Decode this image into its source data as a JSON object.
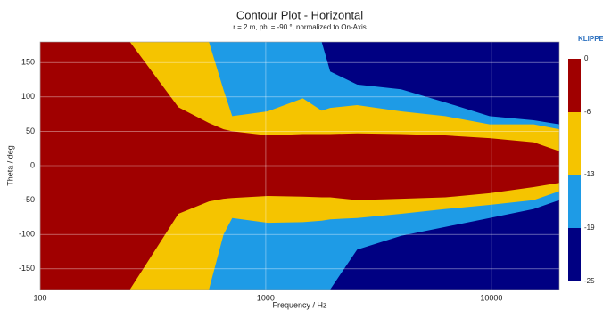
{
  "chart_data": {
    "type": "contour",
    "title": "Contour Plot - Horizontal",
    "subtitle": "r = 2 m, phi = -90 °, normalized to On-Axis",
    "brand": "KLIPPE",
    "x_label": "Frequency / Hz",
    "y_label": "Theta / deg",
    "x_log": true,
    "xlim": [
      100,
      20000
    ],
    "xticks": [
      100,
      1000,
      10000
    ],
    "ylim": [
      -180,
      180
    ],
    "yticks": [
      -150,
      -100,
      -50,
      0,
      50,
      100,
      150
    ],
    "grid": true,
    "x": [
      100,
      250,
      410,
      560,
      650,
      710,
      1020,
      1460,
      1770,
      1930,
      2540,
      3980,
      6250,
      9820,
      15400,
      20000
    ],
    "contours": [
      {
        "upper": [
          180,
          180,
          180,
          180,
          180,
          180,
          180,
          180,
          180,
          137,
          118,
          111,
          92,
          72,
          66,
          60
        ],
        "lower": [
          -180,
          -180,
          -180,
          -180,
          -180,
          -180,
          -180,
          -180,
          -180,
          -180,
          -122,
          -102,
          -89,
          -76,
          -63,
          -50
        ]
      },
      {
        "upper": [
          180,
          180,
          180,
          180,
          110,
          72,
          79,
          98,
          80,
          84,
          88,
          79,
          72,
          60,
          60,
          53
        ],
        "lower": [
          -180,
          -180,
          -180,
          -180,
          -100,
          -76,
          -83,
          -82,
          -80,
          -78,
          -76,
          -70,
          -63,
          -57,
          -50,
          -37
        ]
      },
      {
        "upper": [
          180,
          180,
          85,
          62,
          53,
          50,
          44,
          46,
          46,
          46,
          47,
          46,
          44,
          40,
          34,
          21
        ],
        "lower": [
          -180,
          -180,
          -70,
          -52,
          -48,
          -47,
          -44,
          -45,
          -46,
          -46,
          -50,
          -48,
          -46,
          -40,
          -31,
          -25
        ]
      }
    ],
    "colorbar": {
      "levels": [
        0,
        -6,
        -13,
        -19,
        -25
      ],
      "colors": [
        "#a00000",
        "#f5c400",
        "#1e9be6",
        "#000082"
      ]
    }
  }
}
